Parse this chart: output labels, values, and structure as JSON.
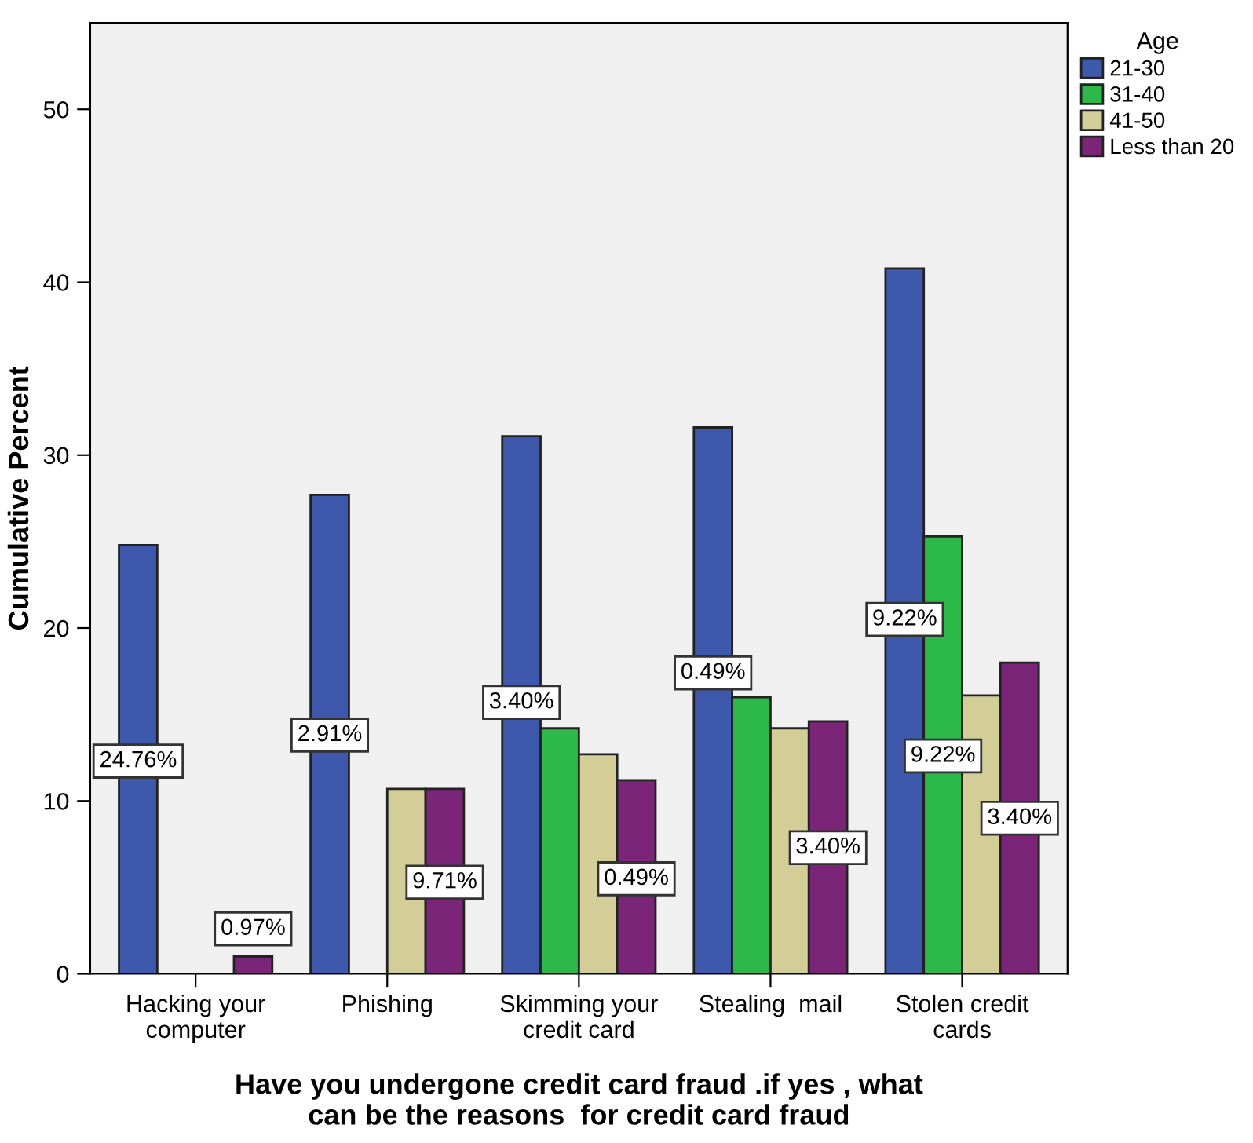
{
  "chart_data": {
    "type": "bar",
    "categories": [
      "Hacking your\ncomputer",
      "Phishing",
      "Skimming your\ncredit card",
      "Stealing  mail",
      "Stolen credit\ncards"
    ],
    "xlabel": "Have you undergone credit card fraud .if yes , what\ncan be the reasons  for credit card fraud",
    "ylabel": "Cumulative Percent",
    "legend_title": "Age",
    "legend": "top right",
    "grid": false,
    "ylim": [
      0,
      55
    ],
    "yticks": [
      0,
      10,
      20,
      30,
      40,
      50
    ],
    "series": [
      {
        "name": "21-30",
        "color": "#3e58ac",
        "values": [
          24.8,
          27.7,
          31.1,
          31.6,
          40.8
        ]
      },
      {
        "name": "31-40",
        "color": "#2db84a",
        "values": [
          null,
          null,
          14.2,
          16.0,
          25.3
        ]
      },
      {
        "name": "41-50",
        "color": "#d3ce97",
        "values": [
          null,
          10.7,
          12.7,
          14.2,
          16.1
        ]
      },
      {
        "name": "Less than 20",
        "color": "#7b2579",
        "values": [
          1.0,
          10.7,
          11.2,
          14.6,
          18.0
        ]
      }
    ],
    "annotations": [
      "24.76%",
      "0.97%",
      "2.91%",
      "9.71%",
      "3.40%",
      "0.49%",
      "0.49%",
      "3.40%",
      "9.22%",
      "9.22%",
      "3.40%"
    ]
  }
}
